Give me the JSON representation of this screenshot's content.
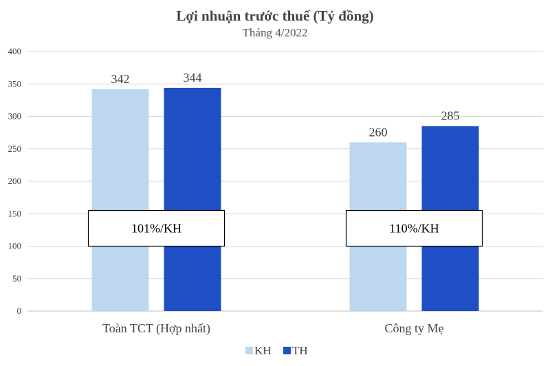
{
  "chart_data": {
    "type": "bar",
    "title": "Lợi nhuận trước thuế (Tỷ đồng)",
    "subtitle": "Tháng 4/2022",
    "categories": [
      "Toàn TCT (Hợp nhất)",
      "Công ty Mẹ"
    ],
    "series": [
      {
        "name": "KH",
        "values": [
          342,
          260
        ],
        "color": "#BDD7EE"
      },
      {
        "name": "TH",
        "values": [
          344,
          285
        ],
        "color": "#1F4FC4"
      }
    ],
    "ylim": [
      0,
      400
    ],
    "yticks": [
      0,
      50,
      100,
      150,
      200,
      250,
      300,
      350,
      400
    ],
    "grid": true,
    "legend_position": "bottom",
    "annotations": [
      {
        "category": "Toàn TCT (Hợp nhất)",
        "text": "101%/KH",
        "y_from": 100,
        "y_to": 155
      },
      {
        "category": "Công ty Mẹ",
        "text": "110%/KH",
        "y_from": 100,
        "y_to": 155
      }
    ]
  }
}
